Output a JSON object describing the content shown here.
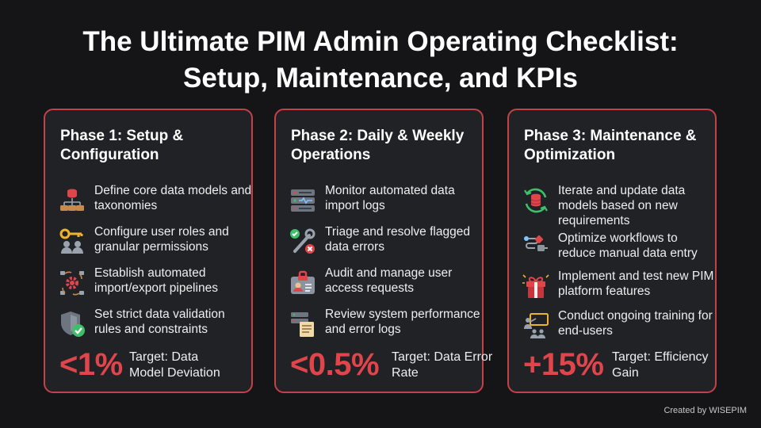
{
  "title": {
    "line1": "The Ultimate PIM Admin Operating Checklist:",
    "line2": "Setup, Maintenance, and KPIs"
  },
  "colors": {
    "accent": "#e0454b",
    "border": "#c34248",
    "card": "#202226",
    "background": "#151518",
    "success": "#3fbf6a"
  },
  "phases": [
    {
      "title": "Phase 1: Setup & Configuration",
      "items": [
        {
          "icon": "database-hierarchy-icon",
          "text": "Define core data models and taxonomies"
        },
        {
          "icon": "key-users-icon",
          "text": "Configure user roles and granular permissions"
        },
        {
          "icon": "gear-cycle-icon",
          "text": "Establish automated import/export pipelines"
        },
        {
          "icon": "shield-check-icon",
          "text": "Set strict data validation rules and constraints"
        }
      ],
      "kpi": {
        "value": "<1%",
        "label": "Target: Data Model Deviation"
      }
    },
    {
      "title": "Phase 2: Daily & Weekly Operations",
      "items": [
        {
          "icon": "server-monitor-icon",
          "text": "Monitor automated data import logs"
        },
        {
          "icon": "wrench-screwdriver-icon",
          "text": "Triage and resolve flagged data errors"
        },
        {
          "icon": "id-badge-lock-icon",
          "text": "Audit and manage user access requests"
        },
        {
          "icon": "server-log-icon",
          "text": "Review system performance and error logs"
        }
      ],
      "kpi": {
        "value": "<0.5%",
        "label": "Target: Data Error Rate"
      }
    },
    {
      "title": "Phase 3: Maintenance & Optimization",
      "items": [
        {
          "icon": "database-refresh-icon",
          "text": "Iterate and update data models based on new requirements"
        },
        {
          "icon": "workflow-icon",
          "text": "Optimize workflows to reduce manual data entry"
        },
        {
          "icon": "gift-features-icon",
          "text": "Implement and test new PIM platform features"
        },
        {
          "icon": "training-presenter-icon",
          "text": "Conduct ongoing training for end-users"
        }
      ],
      "kpi": {
        "value": "+15%",
        "label": "Target: Efficiency Gain"
      }
    }
  ],
  "credit": "Created by WISEPIM"
}
